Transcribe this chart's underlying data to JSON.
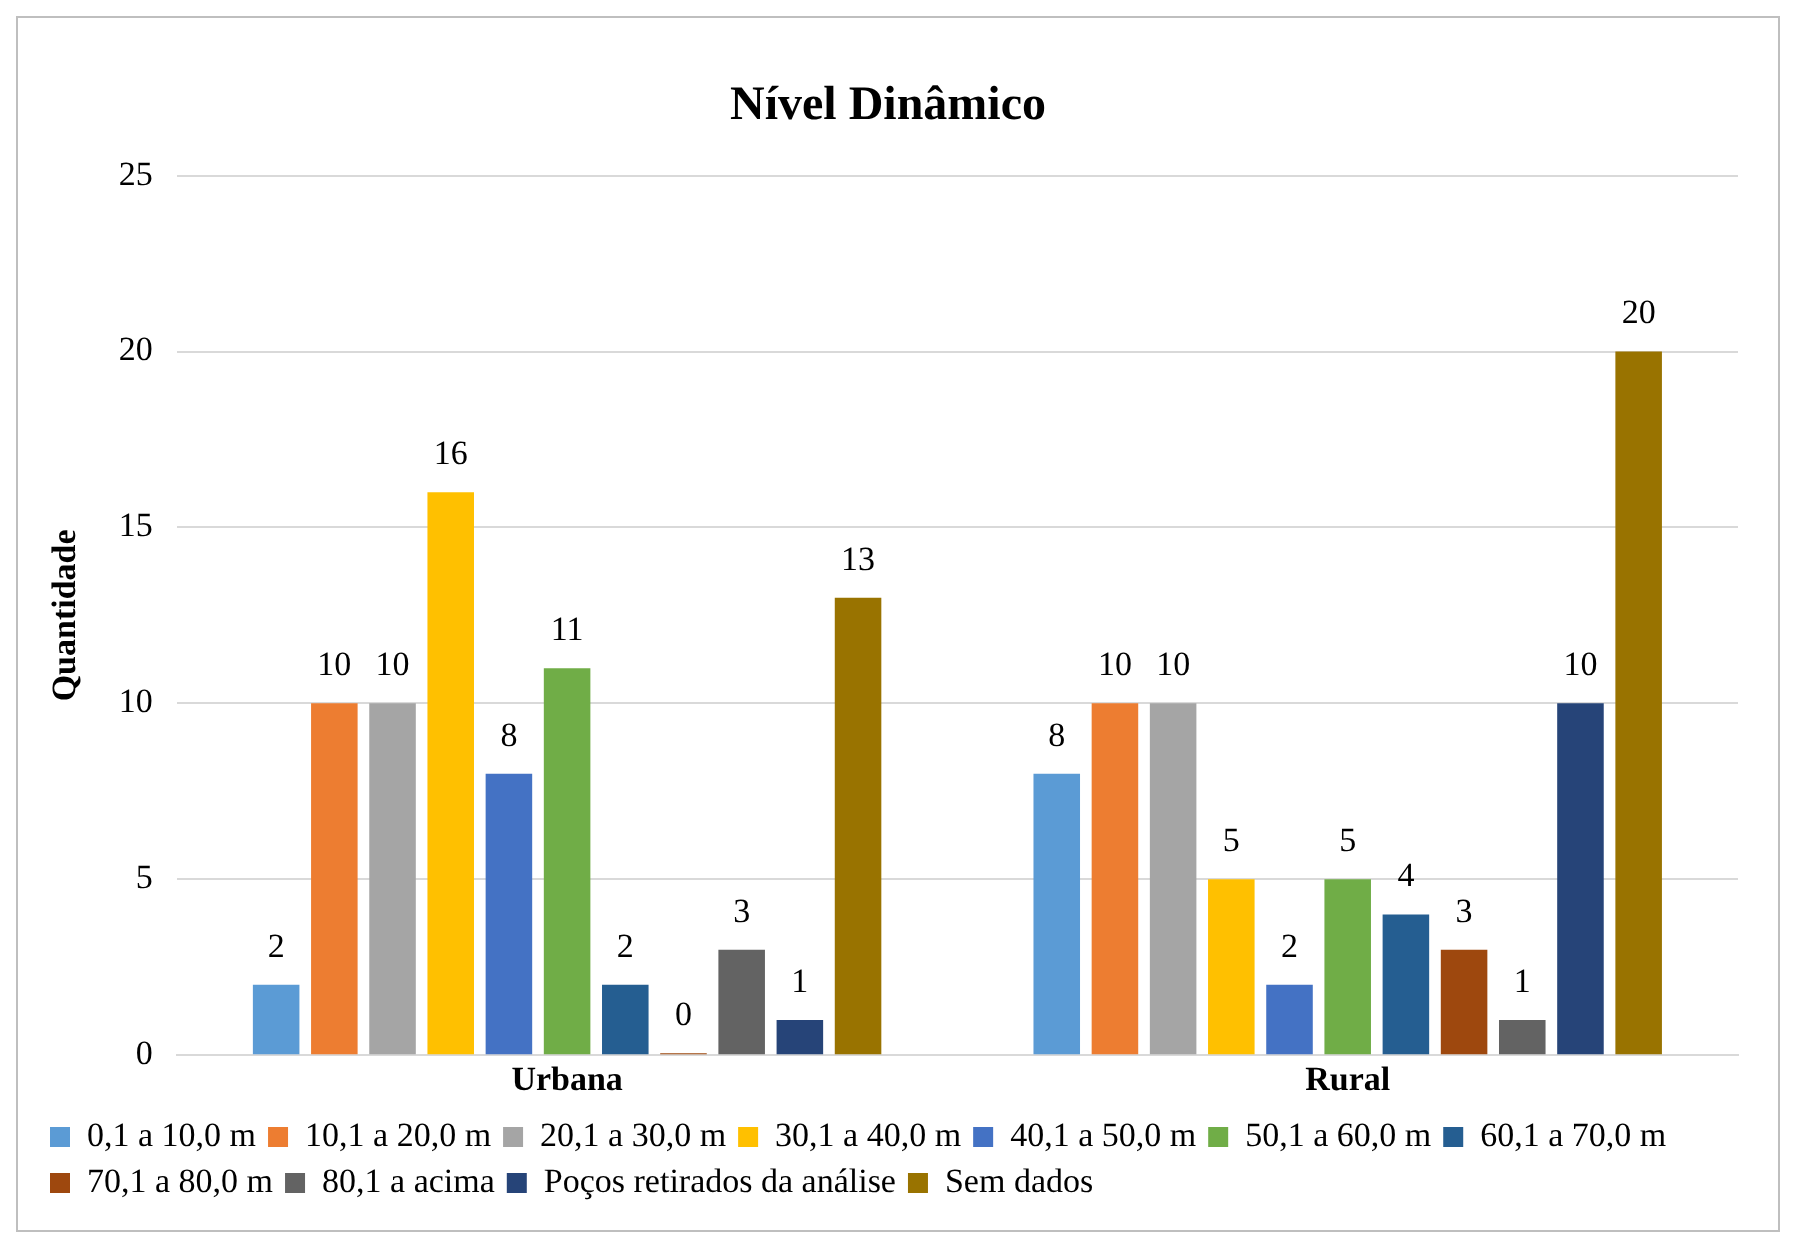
{
  "chart_data": {
    "type": "bar",
    "title": "Nível Dinâmico",
    "ylabel": "Quantidade",
    "categories": [
      "Urbana",
      "Rural"
    ],
    "series": [
      {
        "name": "0,1 a 10,0 m",
        "color": "#5b9bd5",
        "values": [
          2,
          8
        ]
      },
      {
        "name": "10,1 a 20,0 m",
        "color": "#ed7d31",
        "values": [
          10,
          10
        ]
      },
      {
        "name": "20,1 a 30,0 m",
        "color": "#a5a5a5",
        "values": [
          10,
          10
        ]
      },
      {
        "name": "30,1 a 40,0 m",
        "color": "#ffc000",
        "values": [
          16,
          5
        ]
      },
      {
        "name": "40,1 a 50,0 m",
        "color": "#4472c4",
        "values": [
          8,
          2
        ]
      },
      {
        "name": "50,1 a 60,0 m",
        "color": "#70ad47",
        "values": [
          11,
          5
        ]
      },
      {
        "name": "60,1 a 70,0 m",
        "color": "#255e91",
        "values": [
          2,
          4
        ]
      },
      {
        "name": "70,1 a 80,0 m",
        "color": "#9e480e",
        "values": [
          0,
          3
        ]
      },
      {
        "name": "80,1 a acima",
        "color": "#636363",
        "values": [
          3,
          1
        ]
      },
      {
        "name": "Poços retirados da análise",
        "color": "#264478",
        "values": [
          1,
          10
        ]
      },
      {
        "name": "Sem dados",
        "color": "#997300",
        "values": [
          13,
          20
        ]
      }
    ],
    "ylim": [
      0,
      25
    ],
    "yticks": [
      0,
      5,
      10,
      15,
      20,
      25
    ],
    "grid": "y",
    "legend": "bottom",
    "data_labels": true
  }
}
